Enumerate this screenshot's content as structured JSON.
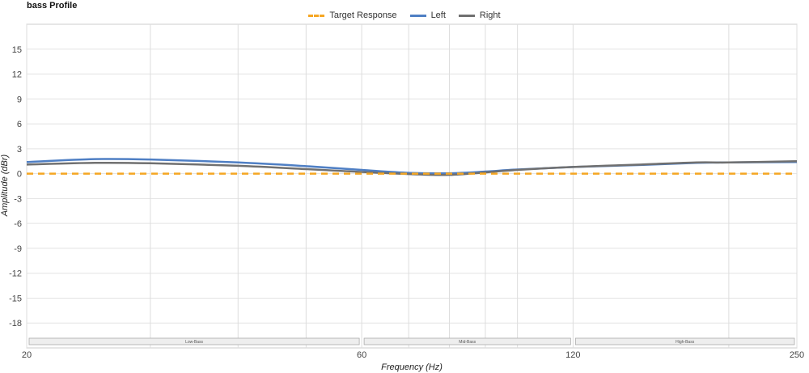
{
  "chart_data": {
    "type": "line",
    "title": "bass Profile",
    "xlabel": "Frequency (Hz)",
    "ylabel": "Amplitude (dBr)",
    "x_scale": "log",
    "xlim": [
      20,
      250
    ],
    "ylim": [
      -21,
      18
    ],
    "x_ticks": [
      20,
      60,
      120,
      250
    ],
    "y_ticks": [
      15,
      12,
      9,
      6,
      3,
      0,
      -3,
      -6,
      -9,
      -12,
      -15,
      -18
    ],
    "x_grid_lines": [
      30,
      40,
      50,
      70,
      80,
      90,
      100,
      200
    ],
    "grid": true,
    "legend_position": "top-center",
    "bands": [
      {
        "label": "Low-Bass",
        "from": 20,
        "to": 60
      },
      {
        "label": "Mid-Bass",
        "from": 60,
        "to": 120
      },
      {
        "label": "High-Bass",
        "from": 120,
        "to": 250
      }
    ],
    "series": [
      {
        "name": "Target Response",
        "color": "#f5a623",
        "style": "dashed",
        "points": [
          [
            20,
            0
          ],
          [
            250,
            0
          ]
        ]
      },
      {
        "name": "Left",
        "color": "#4f7fc4",
        "style": "solid",
        "points": [
          [
            20,
            1.4
          ],
          [
            25,
            1.75
          ],
          [
            30,
            1.7
          ],
          [
            40,
            1.35
          ],
          [
            50,
            0.9
          ],
          [
            60,
            0.45
          ],
          [
            70,
            0.1
          ],
          [
            80,
            0.05
          ],
          [
            90,
            0.25
          ],
          [
            100,
            0.5
          ],
          [
            120,
            0.8
          ],
          [
            150,
            1.05
          ],
          [
            180,
            1.3
          ],
          [
            200,
            1.35
          ],
          [
            250,
            1.4
          ]
        ]
      },
      {
        "name": "Right",
        "color": "#707070",
        "style": "solid",
        "points": [
          [
            20,
            1.1
          ],
          [
            25,
            1.3
          ],
          [
            30,
            1.25
          ],
          [
            40,
            0.95
          ],
          [
            50,
            0.55
          ],
          [
            60,
            0.2
          ],
          [
            70,
            -0.05
          ],
          [
            80,
            -0.15
          ],
          [
            90,
            0.15
          ],
          [
            100,
            0.45
          ],
          [
            120,
            0.8
          ],
          [
            150,
            1.1
          ],
          [
            180,
            1.35
          ],
          [
            200,
            1.35
          ],
          [
            250,
            1.5
          ]
        ]
      }
    ]
  }
}
